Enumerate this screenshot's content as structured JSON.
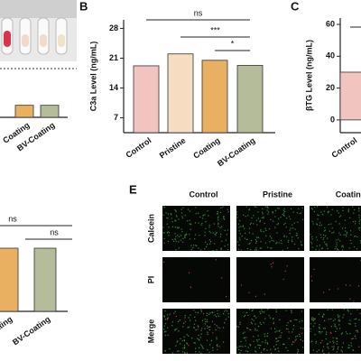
{
  "chart_data": [
    {
      "type": "bar",
      "categories": [
        "Coating",
        "BV-Coating"
      ],
      "values": [
        8,
        8
      ],
      "ylim": [
        0,
        60
      ],
      "colors": [
        "#e8b060",
        "#b5bc9a"
      ]
    },
    {
      "type": "bar",
      "panel_label": "B",
      "ylabel": "C3a Level (ng/mL)",
      "categories": [
        "Control",
        "Pristine",
        "Coating",
        "BV-Coating"
      ],
      "values": [
        19.2,
        22,
        20.5,
        19.3
      ],
      "ylim": [
        3.5,
        30
      ],
      "yticks": [
        7,
        14,
        21,
        28
      ],
      "colors": [
        "#f2c4c0",
        "#f6dcc0",
        "#e8b060",
        "#b5bc9a"
      ],
      "annotations": [
        {
          "text": "ns",
          "from": 0,
          "to": 3
        },
        {
          "text": "***",
          "from": 1,
          "to": 3
        },
        {
          "text": "*",
          "from": 2,
          "to": 3
        }
      ]
    },
    {
      "type": "bar",
      "panel_label": "C",
      "ylabel": "βTG Level (ng/mL)",
      "categories": [
        "Control"
      ],
      "values": [
        30
      ],
      "ylim": [
        -8,
        64
      ],
      "yticks": [
        0,
        20,
        40,
        60
      ],
      "colors": [
        "#f2c4c0"
      ]
    },
    {
      "type": "bar",
      "categories": [
        "Coating",
        "BV-Coating"
      ],
      "values": [
        70,
        70
      ],
      "ylim": [
        0,
        100
      ],
      "colors": [
        "#e8b060",
        "#b5bc9a"
      ],
      "annotations": [
        {
          "text": "ns"
        },
        {
          "text": "ns"
        }
      ]
    }
  ],
  "micrograph_panel": {
    "label": "E",
    "columns": [
      "Control",
      "Pristine",
      "Coating"
    ],
    "rows": [
      "Calcein",
      "PI",
      "Merge"
    ]
  }
}
